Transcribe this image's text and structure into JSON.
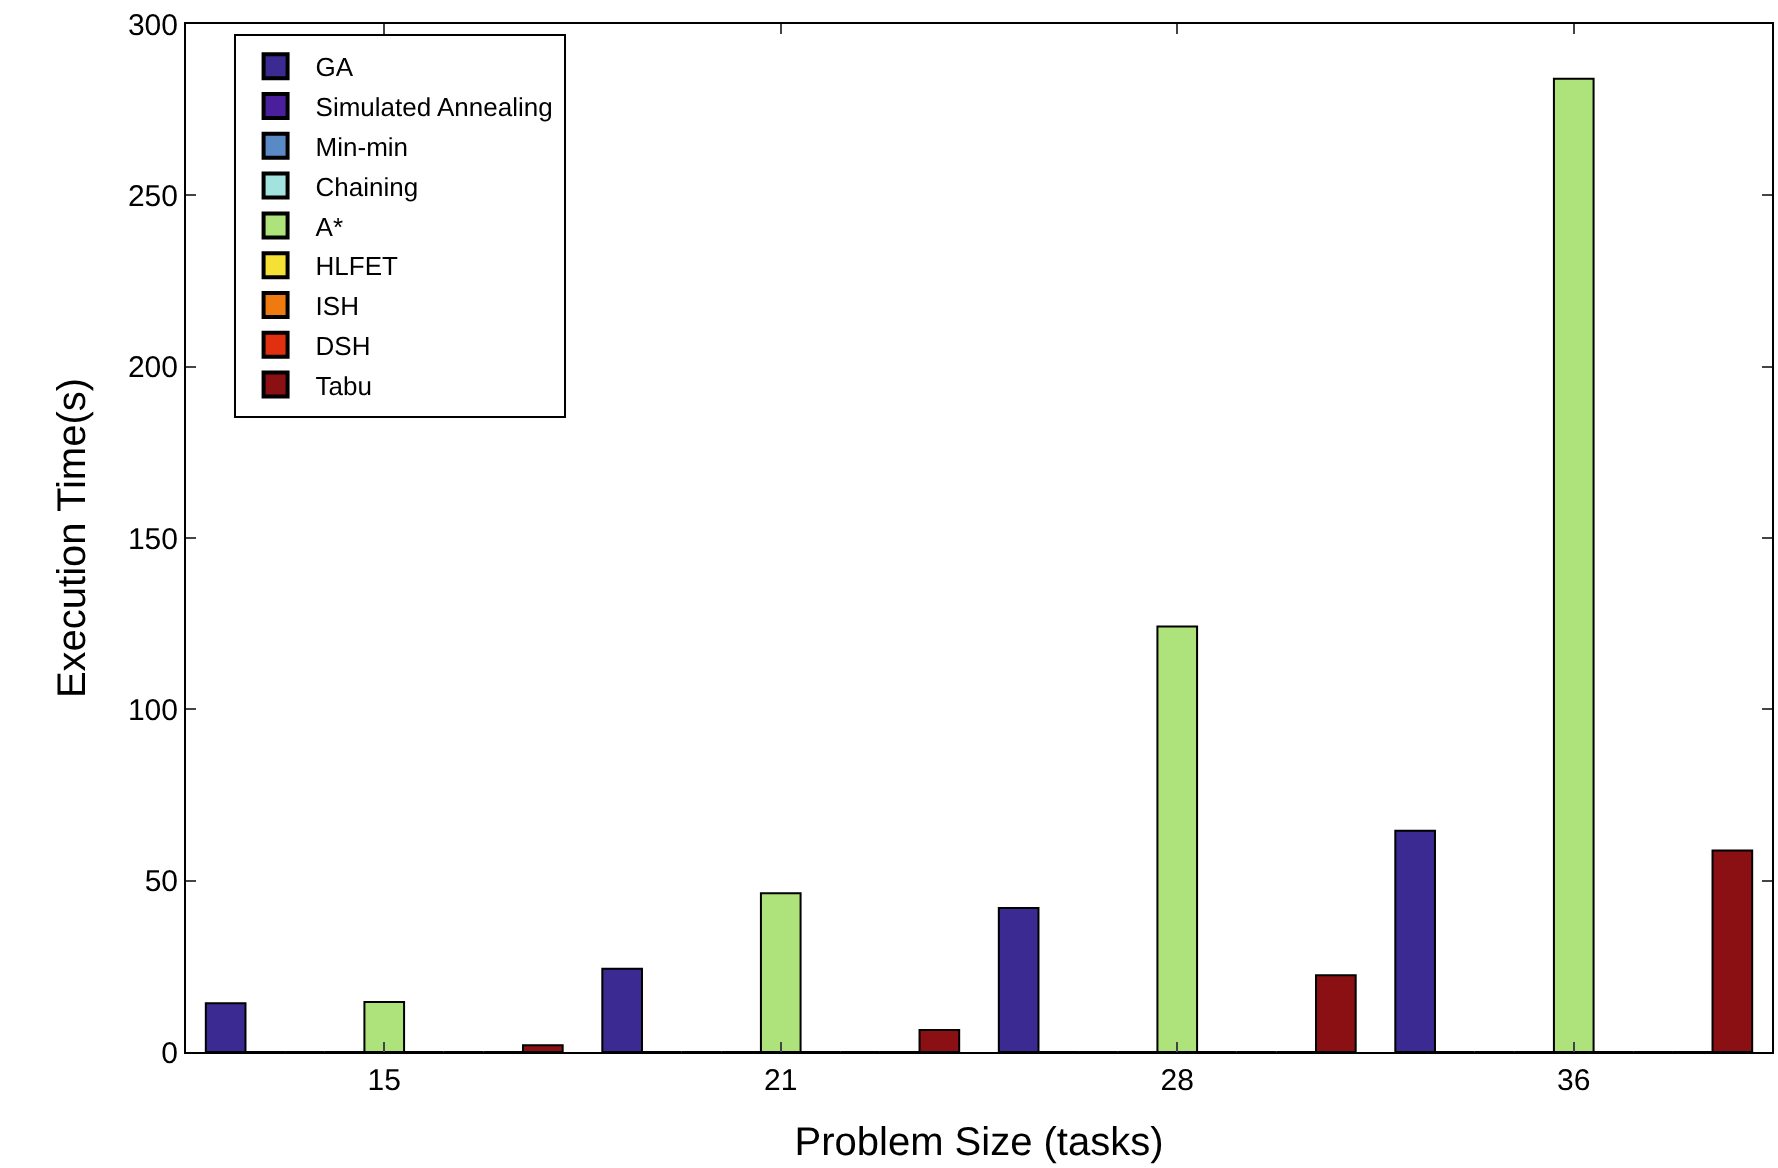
{
  "chart_data": {
    "type": "bar",
    "xlabel": "Problem Size (tasks)",
    "ylabel": "Execution Time(s)",
    "categories": [
      "15",
      "21",
      "28",
      "36"
    ],
    "ylim": [
      0,
      300
    ],
    "yticks": [
      0,
      50,
      100,
      150,
      200,
      250,
      300
    ],
    "legend": "top left",
    "series": [
      {
        "name": "GA",
        "color": "#3b2a91",
        "values": [
          14.2,
          24.3,
          42,
          64.6
        ]
      },
      {
        "name": "Simulated Annealing",
        "color": "#4a1f9e",
        "values": [
          0,
          0,
          0,
          0
        ]
      },
      {
        "name": "Min-min",
        "color": "#5a8ac6",
        "values": [
          0,
          0,
          0,
          0
        ]
      },
      {
        "name": "Chaining",
        "color": "#a2e3e0",
        "values": [
          0,
          0,
          0,
          0
        ]
      },
      {
        "name": "A*",
        "color": "#aee27a",
        "values": [
          14.6,
          46.3,
          124.2,
          284
        ]
      },
      {
        "name": "HLFET",
        "color": "#f5e135",
        "values": [
          0,
          0,
          0,
          0
        ]
      },
      {
        "name": "ISH",
        "color": "#ef7a0f",
        "values": [
          0,
          0,
          0,
          0
        ]
      },
      {
        "name": "DSH",
        "color": "#e0300f",
        "values": [
          0,
          0,
          0,
          0
        ]
      },
      {
        "name": "Tabu",
        "color": "#8a1014",
        "values": [
          2,
          6.4,
          22.4,
          58.8
        ]
      }
    ]
  }
}
